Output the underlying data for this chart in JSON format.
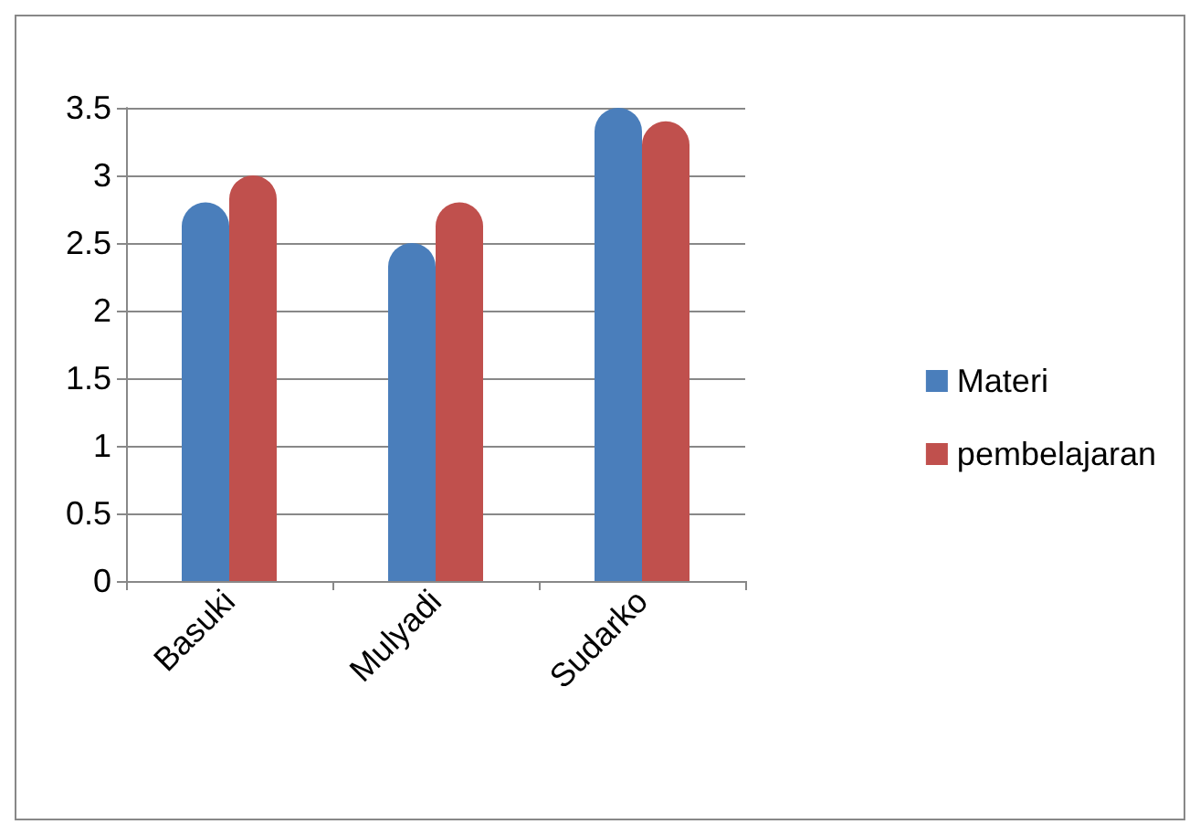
{
  "chart_data": {
    "type": "bar",
    "categories": [
      "Basuki",
      "Mulyadi",
      "Sudarko"
    ],
    "series": [
      {
        "name": "Materi",
        "color": "#4a7ebb",
        "values": [
          2.8,
          2.5,
          3.5
        ]
      },
      {
        "name": "pembelajaran",
        "color": "#c0504d",
        "values": [
          3.0,
          2.8,
          3.4
        ]
      }
    ],
    "ylim": [
      0,
      3.5
    ],
    "yticks": [
      0,
      0.5,
      1,
      1.5,
      2,
      2.5,
      3,
      3.5
    ],
    "grid": "y",
    "legend": "right"
  }
}
